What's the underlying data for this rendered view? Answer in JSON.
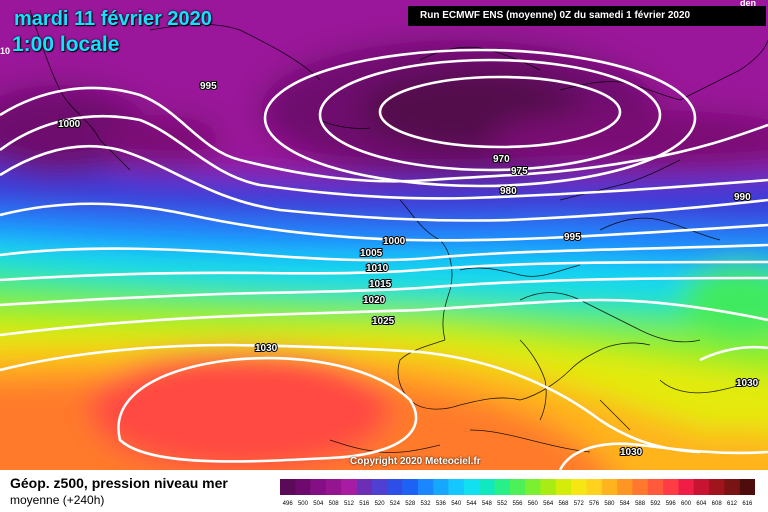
{
  "header": {
    "date": "mardi 11 février 2020",
    "time": "1:00 locale",
    "run": "Run ECMWF ENS (moyenne) 0Z du samedi 1 février 2020",
    "corner_left": "10",
    "corner_right": "den"
  },
  "copyright": "Copyright 2020 Meteociel.fr",
  "footer": {
    "title": "Géop. z500, pression niveau mer",
    "subtitle": "moyenne  (+240h)"
  },
  "isobar_labels": [
    {
      "text": "995"
    },
    {
      "text": "1000"
    },
    {
      "text": "970"
    },
    {
      "text": "975"
    },
    {
      "text": "980"
    },
    {
      "text": "990"
    },
    {
      "text": "1000"
    },
    {
      "text": "995"
    },
    {
      "text": "1005"
    },
    {
      "text": "1010"
    },
    {
      "text": "1015"
    },
    {
      "text": "1020"
    },
    {
      "text": "1025"
    },
    {
      "text": "1030"
    },
    {
      "text": "1030"
    },
    {
      "text": "1030"
    }
  ],
  "legend": {
    "values": [
      "496",
      "500",
      "504",
      "508",
      "512",
      "516",
      "520",
      "524",
      "528",
      "532",
      "536",
      "540",
      "544",
      "548",
      "552",
      "556",
      "560",
      "564",
      "568",
      "572",
      "576",
      "580",
      "584",
      "588",
      "592",
      "596",
      "600",
      "604",
      "608",
      "612",
      "616"
    ],
    "colors": [
      "#5a0a56",
      "#6e0a6e",
      "#840f84",
      "#951590",
      "#a81ca4",
      "#6b2eb5",
      "#4f40d2",
      "#2e4ee8",
      "#1c62f5",
      "#1a86ff",
      "#16a8ff",
      "#14c8ff",
      "#10e0f0",
      "#10e8c0",
      "#28f088",
      "#4ef058",
      "#7af030",
      "#a8ec14",
      "#d4ec0a",
      "#f5e614",
      "#ffd21e",
      "#ffb41e",
      "#ff9624",
      "#ff782d",
      "#ff5a3c",
      "#ff3c46",
      "#f01e46",
      "#c81432",
      "#a0141e",
      "#781414",
      "#4e0c0c"
    ]
  }
}
